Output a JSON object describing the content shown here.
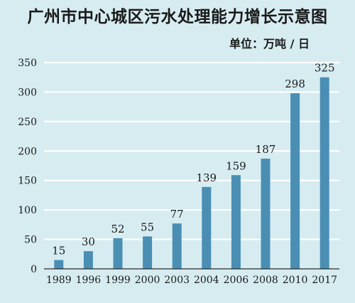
{
  "chart_data": {
    "type": "bar",
    "title": "广州市中心城区污水处理能力增长示意图",
    "unit_label": "单位：万吨 / 日",
    "categories": [
      "1989",
      "1996",
      "1999",
      "2000",
      "2003",
      "2004",
      "2006",
      "2008",
      "2010",
      "2017"
    ],
    "values": [
      15,
      30,
      52,
      55,
      77,
      139,
      159,
      187,
      298,
      325
    ],
    "value_labels": [
      "15",
      "30",
      "52",
      "55",
      "77",
      "139",
      "159",
      "187",
      "298",
      "325"
    ],
    "yticks": [
      0,
      50,
      100,
      150,
      200,
      250,
      300,
      350
    ],
    "ytick_labels": [
      "0",
      "50",
      "100",
      "150",
      "200",
      "250",
      "300",
      "350"
    ],
    "ylim": [
      0,
      350
    ],
    "grid": true,
    "bar_color": "#4a8fb3",
    "grid_color": "#ffffff",
    "background_color": "#d6ecf1"
  }
}
